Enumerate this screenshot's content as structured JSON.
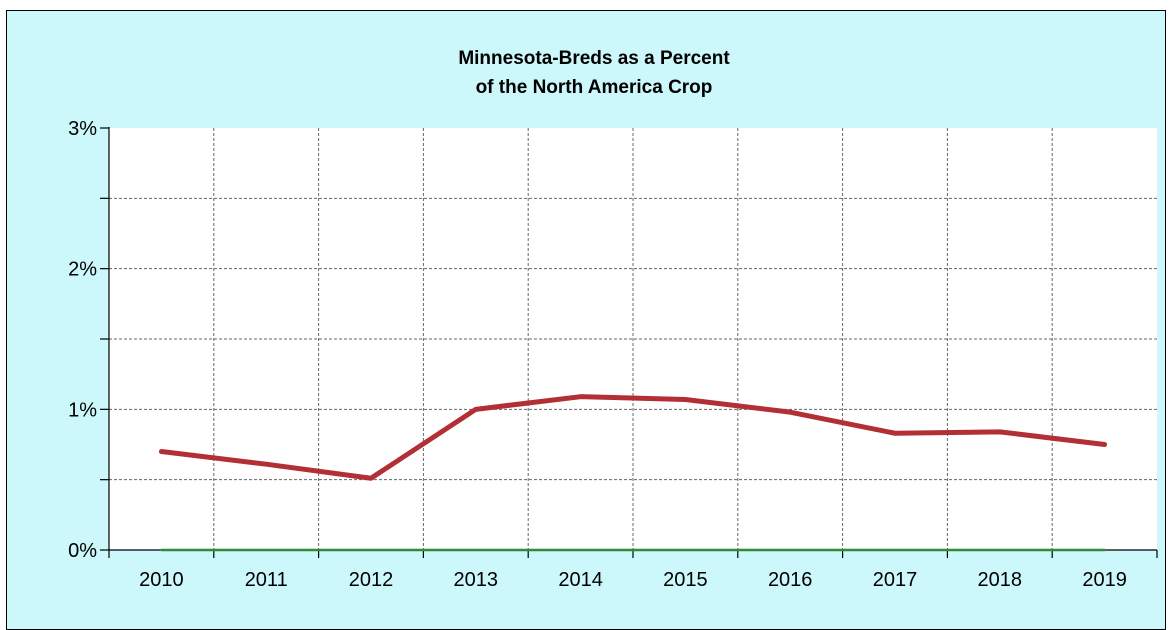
{
  "chart_data": {
    "type": "line",
    "title": "Minnesota-Breds as a Percent of the North America Crop",
    "title_lines": [
      "Minnesota-Breds as a Percent",
      "of the North America Crop"
    ],
    "categories": [
      "2010",
      "2011",
      "2012",
      "2013",
      "2014",
      "2015",
      "2016",
      "2017",
      "2018",
      "2019"
    ],
    "series": [
      {
        "values": [
          0.7,
          0.61,
          0.51,
          1.0,
          1.09,
          1.07,
          0.98,
          0.83,
          0.84,
          0.75
        ],
        "color": "#b22f35"
      },
      {
        "values": [
          0,
          0,
          0,
          0,
          0,
          0,
          0,
          0,
          0,
          0
        ],
        "color": "#2e8b3a"
      }
    ],
    "ylim": [
      0,
      3
    ],
    "yticks": [
      0,
      1,
      2,
      3
    ],
    "ytick_labels": [
      "0%",
      "1%",
      "2%",
      "3%"
    ],
    "y_minor_step": 0.5,
    "grid": true,
    "xlabel": "",
    "ylabel": ""
  },
  "colors": {
    "background": "#ccf7fb",
    "plot_area": "#ffffff",
    "grid": "#666666"
  }
}
